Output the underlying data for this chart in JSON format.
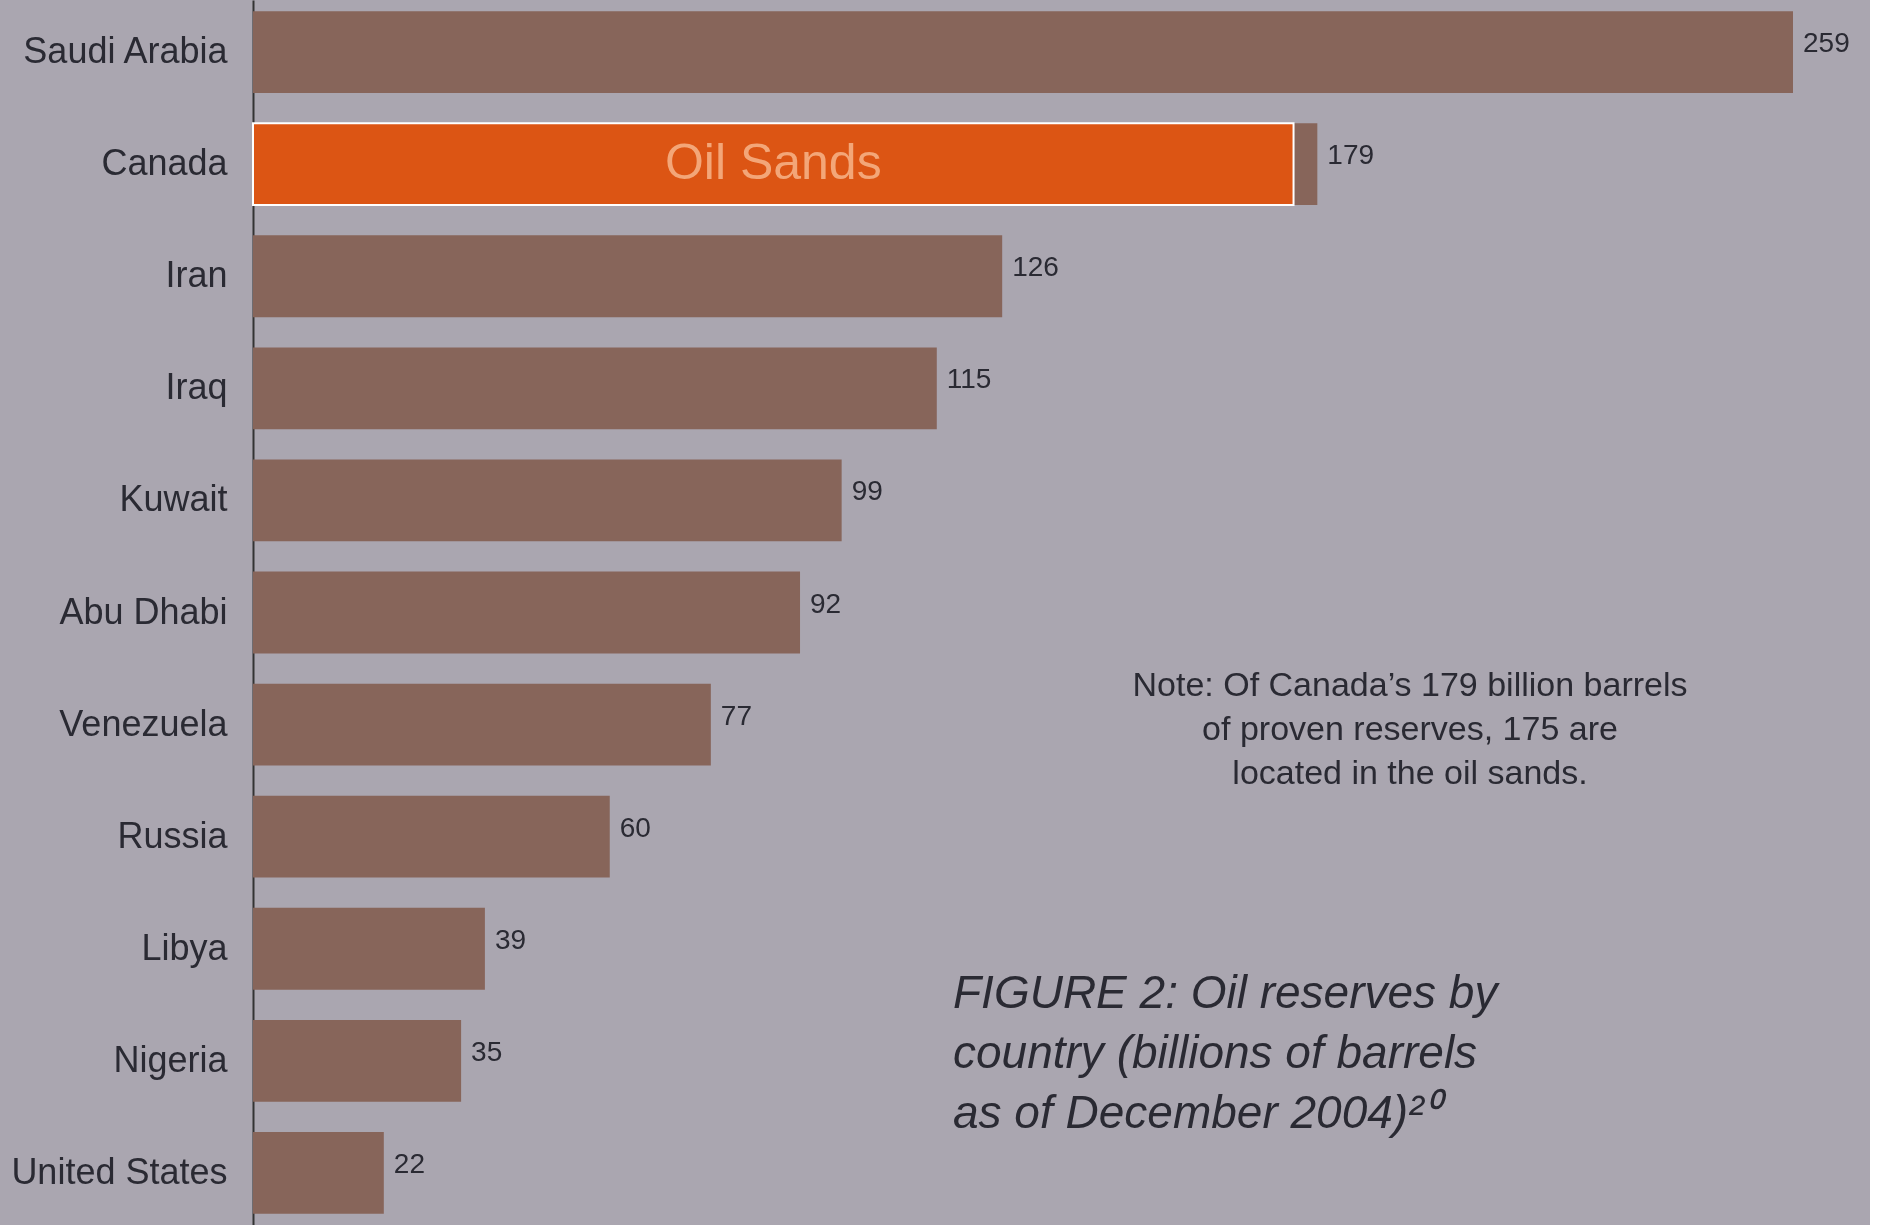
{
  "chart_data": {
    "type": "bar",
    "orientation": "horizontal",
    "categories": [
      "Saudi Arabia",
      "Canada",
      "Iran",
      "Iraq",
      "Kuwait",
      "Abu Dhabi",
      "Venezuela",
      "Russia",
      "Libya",
      "Nigeria",
      "United States"
    ],
    "series": [
      {
        "color": "#87655a",
        "values": [
          259,
          179,
          126,
          115,
          99,
          92,
          77,
          60,
          39,
          35,
          22
        ],
        "value_labels": [
          "259",
          "179",
          "126",
          "115",
          "99",
          "92",
          "77",
          "60",
          "39",
          "35",
          "22"
        ]
      },
      {
        "name": "Oil Sands",
        "color": "#dc5514",
        "values": [
          null,
          175,
          null,
          null,
          null,
          null,
          null,
          null,
          null,
          null,
          null
        ]
      }
    ],
    "annotations": [
      "Note: Of Canada’s 179 billion barrels\nof proven reserves, 175 are\nlocated in the oil sands.",
      "FIGURE 2: Oil reserves by\ncountry (billions of barrels\nas of December 2004)²⁰"
    ],
    "grid": false,
    "legend": false
  }
}
